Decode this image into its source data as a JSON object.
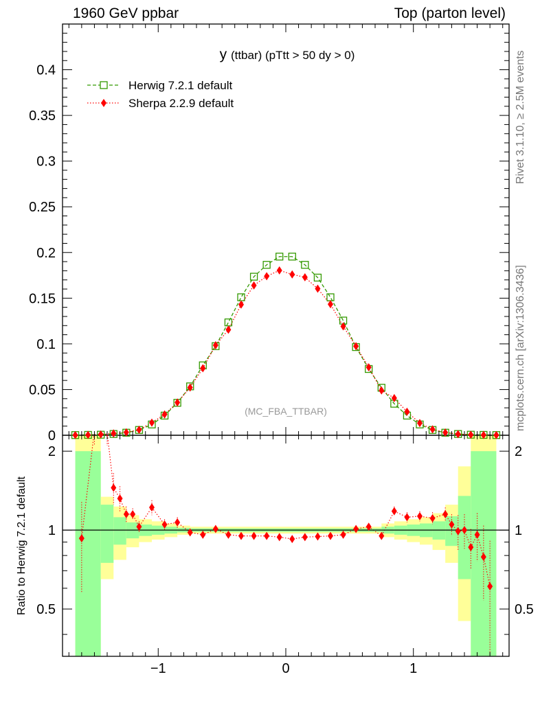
{
  "header": {
    "left": "1960 GeV ppbar",
    "right": "Top (parton level)"
  },
  "side_labels": {
    "rivet": "Rivet 3.1.10, ≥ 2.5M events",
    "mcplots": "mcplots.cern.ch [arXiv:1306.3436]"
  },
  "chart_data": {
    "type": "line",
    "title": "y (ttbar) (pTtt > 50 dy > 0)",
    "title_main": "y",
    "title_rest": "(ttbar) (pTtt > 50 dy > 0)",
    "watermark": "(MC_FBA_TTBAR)",
    "xlim": [
      -1.75,
      1.75
    ],
    "ylim_main": [
      0,
      0.45
    ],
    "ylim_ratio": [
      0.33,
      2.3
    ],
    "x_ticks": [
      -1,
      0,
      1
    ],
    "x_tick_labels": [
      "−1",
      "0",
      "1"
    ],
    "y_ticks_main": [
      0,
      0.05,
      0.1,
      0.15,
      0.2,
      0.25,
      0.3,
      0.35,
      0.4
    ],
    "y_tick_labels_main": [
      "0",
      "0.05",
      "0.1",
      "0.15",
      "0.2",
      "0.25",
      "0.3",
      "0.35",
      "0.4"
    ],
    "y_ticks_ratio": [
      0.5,
      1,
      2
    ],
    "y_tick_labels_ratio": [
      "0.5",
      "1",
      "2"
    ],
    "ratio_ylabel": "Ratio to Herwig 7.2.1 default",
    "legend_position": "top-left",
    "x": [
      -1.65,
      -1.55,
      -1.45,
      -1.35,
      -1.25,
      -1.15,
      -1.05,
      -0.95,
      -0.85,
      -0.75,
      -0.65,
      -0.55,
      -0.45,
      -0.35,
      -0.25,
      -0.15,
      -0.05,
      0.05,
      0.15,
      0.25,
      0.35,
      0.45,
      0.55,
      0.65,
      0.75,
      0.85,
      0.95,
      1.05,
      1.15,
      1.25,
      1.35,
      1.45,
      1.55,
      1.65
    ],
    "series": [
      {
        "name": "Herwig 7.2.1 default",
        "color": "#339900",
        "marker": "open-square",
        "line": "dashed",
        "values": [
          0.0002,
          0.0004,
          0.0006,
          0.0014,
          0.0028,
          0.0058,
          0.0118,
          0.0215,
          0.0355,
          0.0535,
          0.0765,
          0.0975,
          0.1235,
          0.151,
          0.1735,
          0.1865,
          0.1955,
          0.1955,
          0.1865,
          0.1725,
          0.151,
          0.1255,
          0.0965,
          0.0725,
          0.052,
          0.0345,
          0.0215,
          0.0118,
          0.0058,
          0.0028,
          0.0014,
          0.0006,
          0.0004,
          0.0002
        ]
      },
      {
        "name": "Sherpa 2.2.9 default",
        "color": "#ff0000",
        "marker": "filled-diamond",
        "line": "dotted",
        "values": [
          0.0002,
          0.0004,
          0.0009,
          0.0021,
          0.0032,
          0.006,
          0.0138,
          0.0228,
          0.0359,
          0.0522,
          0.0733,
          0.0985,
          0.1155,
          0.143,
          0.164,
          0.174,
          0.1804,
          0.176,
          0.1729,
          0.1604,
          0.1434,
          0.1192,
          0.0975,
          0.0744,
          0.049,
          0.0407,
          0.0257,
          0.0133,
          0.0065,
          0.003,
          0.0012,
          0.0006,
          0.0004,
          0.0002
        ]
      }
    ],
    "ratio": {
      "reference": "Herwig 7.2.1 default",
      "x": [
        -1.6,
        -1.5,
        -1.4,
        -1.35,
        -1.3,
        -1.25,
        -1.2,
        -1.15,
        -1.05,
        -0.95,
        -0.85,
        -0.75,
        -0.65,
        -0.55,
        -0.45,
        -0.35,
        -0.25,
        -0.15,
        -0.05,
        0.05,
        0.15,
        0.25,
        0.35,
        0.45,
        0.55,
        0.65,
        0.75,
        0.85,
        0.95,
        1.05,
        1.15,
        1.25,
        1.3,
        1.35,
        1.4,
        1.45,
        1.5,
        1.55,
        1.6
      ],
      "values": [
        0.93,
        2.4,
        2.35,
        1.45,
        1.32,
        1.15,
        1.15,
        1.03,
        1.22,
        1.05,
        1.07,
        0.98,
        0.96,
        1.01,
        0.96,
        0.95,
        0.95,
        0.95,
        0.94,
        0.925,
        0.94,
        0.945,
        0.95,
        0.96,
        1.01,
        1.03,
        0.95,
        1.18,
        1.12,
        1.13,
        1.11,
        1.15,
        1.05,
        0.99,
        1.0,
        0.86,
        0.96,
        0.79,
        0.61
      ],
      "errors": [
        0.35,
        0.3,
        0.25,
        0.2,
        0.15,
        0.08,
        0.06,
        0.05,
        0.08,
        0.05,
        0.05,
        0.03,
        0.02,
        0.02,
        0.01,
        0.01,
        0.01,
        0.01,
        0.01,
        0.01,
        0.01,
        0.01,
        0.01,
        0.01,
        0.01,
        0.02,
        0.03,
        0.05,
        0.05,
        0.05,
        0.06,
        0.07,
        0.1,
        0.15,
        0.15,
        0.15,
        0.2,
        0.25,
        0.3
      ],
      "bands": {
        "edges": [
          -1.65,
          -1.45,
          -1.35,
          -1.25,
          -1.15,
          -1.05,
          -0.95,
          -0.85,
          -0.75,
          0.75,
          0.85,
          0.95,
          1.05,
          1.15,
          1.25,
          1.35,
          1.45,
          1.65
        ],
        "inner_lo": [
          0.05,
          0.75,
          0.88,
          0.93,
          0.95,
          0.96,
          0.97,
          0.98,
          0.985,
          0.97,
          0.96,
          0.95,
          0.94,
          0.92,
          0.87,
          0.65,
          0.05
        ],
        "inner_hi": [
          2.0,
          1.25,
          1.12,
          1.07,
          1.05,
          1.04,
          1.03,
          1.02,
          1.015,
          1.03,
          1.04,
          1.05,
          1.06,
          1.08,
          1.13,
          1.35,
          2.0
        ],
        "outer_lo": [
          0.05,
          0.65,
          0.77,
          0.86,
          0.9,
          0.92,
          0.94,
          0.96,
          0.97,
          0.94,
          0.92,
          0.9,
          0.88,
          0.84,
          0.75,
          0.45,
          0.05
        ],
        "outer_hi": [
          2.3,
          1.34,
          1.23,
          1.14,
          1.1,
          1.08,
          1.06,
          1.04,
          1.03,
          1.06,
          1.08,
          1.1,
          1.12,
          1.16,
          1.25,
          1.75,
          2.3
        ],
        "inner_color": "#99ff99",
        "outer_color": "#ffff99"
      }
    }
  }
}
